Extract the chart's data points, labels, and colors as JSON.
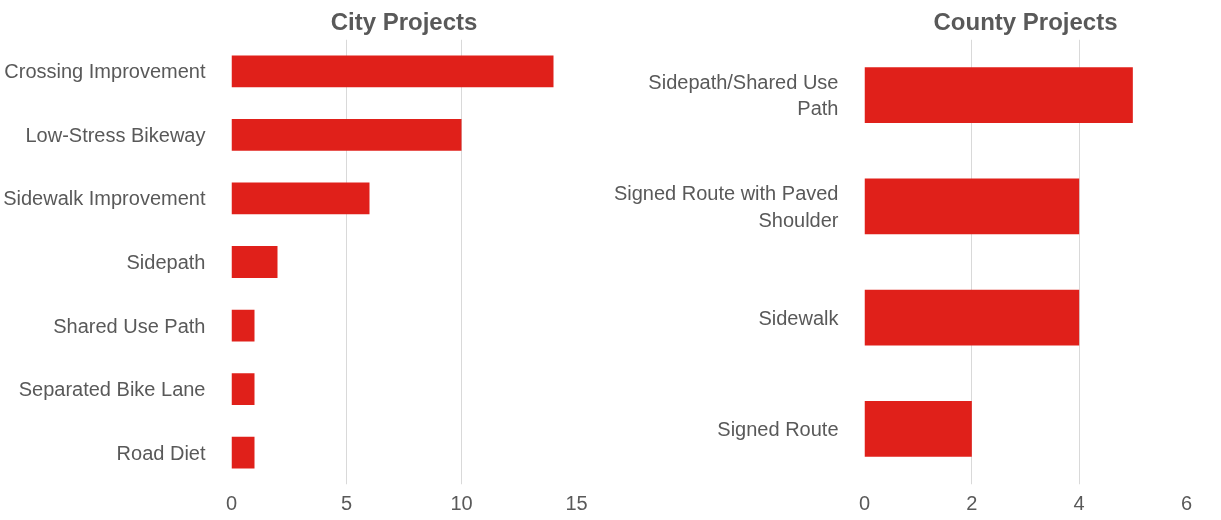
{
  "chart_data": [
    {
      "type": "bar",
      "orientation": "horizontal",
      "title": "City Projects",
      "categories": [
        "Crossing Improvement",
        "Low-Stress Bikeway",
        "Sidewalk Improvement",
        "Sidepath",
        "Shared Use Path",
        "Separated Bike Lane",
        "Road Diet"
      ],
      "values": [
        14,
        10,
        6,
        2,
        1,
        1,
        1
      ],
      "color": "#e0201a",
      "xlim": [
        0,
        15
      ],
      "xticks": [
        0,
        5,
        10,
        15
      ],
      "grid": "x"
    },
    {
      "type": "bar",
      "orientation": "horizontal",
      "title": "County Projects",
      "categories": [
        "Sidepath/Shared Use Path",
        "Signed Route with Paved Shoulder",
        "Sidewalk",
        "Signed Route"
      ],
      "values": [
        5,
        4,
        4,
        2
      ],
      "color": "#e0201a",
      "xlim": [
        0,
        6
      ],
      "xticks": [
        0,
        2,
        4,
        6
      ],
      "grid": "x"
    }
  ]
}
